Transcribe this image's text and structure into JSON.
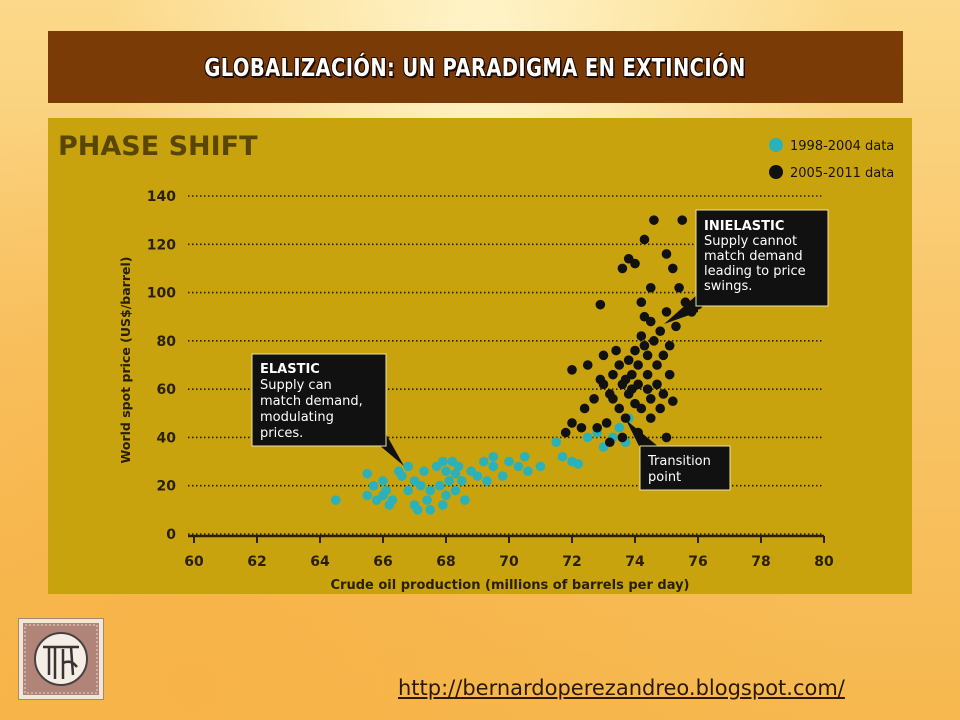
{
  "slide": {
    "title": "GLOBALIZACIÓN:  UN PARADIGMA EN EXTINCIÓN",
    "url": "http://bernardoperezandreo.blogspot.com/"
  },
  "chart_data": {
    "type": "scatter",
    "title": "PHASE SHIFT",
    "xlabel": "Crude oil production (millions of barrels per day)",
    "ylabel": "World spot price (US$/barrel)",
    "xlim": [
      60,
      80
    ],
    "ylim": [
      0,
      140
    ],
    "x_ticks": [
      "60",
      "62",
      "64",
      "66",
      "68",
      "70",
      "72",
      "74",
      "76",
      "78",
      "80"
    ],
    "y_ticks": [
      "0",
      "20",
      "40",
      "60",
      "80",
      "100",
      "120",
      "140"
    ],
    "grid": "horizontal dotted",
    "legend_position": "top-right",
    "colors": {
      "background": "#c8a30e",
      "series1": "#2bb1b7",
      "series2": "#111111",
      "annotation_box": "#111111"
    },
    "series": [
      {
        "name": "1998-2004 data",
        "points": [
          [
            64.5,
            14
          ],
          [
            65.5,
            16
          ],
          [
            65.5,
            25
          ],
          [
            65.7,
            20
          ],
          [
            65.8,
            14
          ],
          [
            66,
            22
          ],
          [
            66,
            16
          ],
          [
            66.1,
            18
          ],
          [
            66.2,
            12
          ],
          [
            66.3,
            14
          ],
          [
            66.5,
            26
          ],
          [
            66.6,
            24
          ],
          [
            66.8,
            18
          ],
          [
            66.8,
            28
          ],
          [
            67,
            12
          ],
          [
            67,
            22
          ],
          [
            67.1,
            10
          ],
          [
            67.2,
            20
          ],
          [
            67.3,
            26
          ],
          [
            67.4,
            14
          ],
          [
            67.5,
            10
          ],
          [
            67.5,
            18
          ],
          [
            67.7,
            28
          ],
          [
            67.8,
            20
          ],
          [
            67.9,
            12
          ],
          [
            67.9,
            30
          ],
          [
            68,
            16
          ],
          [
            68,
            26
          ],
          [
            68.1,
            22
          ],
          [
            68.2,
            30
          ],
          [
            68.3,
            18
          ],
          [
            68.3,
            25
          ],
          [
            68.4,
            28
          ],
          [
            68.5,
            22
          ],
          [
            68.6,
            14
          ],
          [
            68.8,
            26
          ],
          [
            69,
            24
          ],
          [
            69.2,
            30
          ],
          [
            69.3,
            22
          ],
          [
            69.5,
            28
          ],
          [
            69.5,
            32
          ],
          [
            69.8,
            24
          ],
          [
            70,
            30
          ],
          [
            70.3,
            28
          ],
          [
            70.5,
            32
          ],
          [
            70.6,
            26
          ],
          [
            71,
            28
          ],
          [
            71.5,
            38
          ],
          [
            71.7,
            32
          ],
          [
            72,
            30
          ],
          [
            72.2,
            29
          ],
          [
            72.5,
            40
          ],
          [
            72.8,
            42
          ],
          [
            73,
            36
          ],
          [
            73.3,
            40
          ],
          [
            73.5,
            44
          ],
          [
            73.7,
            38
          ],
          [
            73.8,
            48
          ]
        ]
      },
      {
        "name": "2005-2011 data",
        "points": [
          [
            71.8,
            42
          ],
          [
            72,
            46
          ],
          [
            72,
            68
          ],
          [
            72.3,
            44
          ],
          [
            72.4,
            52
          ],
          [
            72.5,
            70
          ],
          [
            72.7,
            56
          ],
          [
            72.9,
            64
          ],
          [
            72.9,
            95
          ],
          [
            73,
            62
          ],
          [
            73,
            74
          ],
          [
            73.1,
            46
          ],
          [
            73.2,
            58
          ],
          [
            73.3,
            66
          ],
          [
            73.3,
            56
          ],
          [
            73.4,
            76
          ],
          [
            73.5,
            52
          ],
          [
            73.5,
            70
          ],
          [
            73.6,
            62
          ],
          [
            73.6,
            110
          ],
          [
            73.7,
            48
          ],
          [
            73.7,
            64
          ],
          [
            73.8,
            58
          ],
          [
            73.8,
            72
          ],
          [
            73.8,
            114
          ],
          [
            73.9,
            60
          ],
          [
            73.9,
            66
          ],
          [
            74,
            54
          ],
          [
            74,
            76
          ],
          [
            74,
            112
          ],
          [
            74.1,
            62
          ],
          [
            74.1,
            70
          ],
          [
            74.2,
            52
          ],
          [
            74.2,
            82
          ],
          [
            74.2,
            96
          ],
          [
            74.3,
            78
          ],
          [
            74.3,
            90
          ],
          [
            74.3,
            122
          ],
          [
            74.4,
            60
          ],
          [
            74.4,
            66
          ],
          [
            74.4,
            74
          ],
          [
            74.5,
            48
          ],
          [
            74.5,
            56
          ],
          [
            74.5,
            88
          ],
          [
            74.5,
            102
          ],
          [
            74.6,
            80
          ],
          [
            74.6,
            130
          ],
          [
            74.7,
            62
          ],
          [
            74.7,
            70
          ],
          [
            74.8,
            52
          ],
          [
            74.8,
            84
          ],
          [
            74.9,
            58
          ],
          [
            74.9,
            74
          ],
          [
            75,
            40
          ],
          [
            75,
            92
          ],
          [
            75,
            116
          ],
          [
            75.1,
            66
          ],
          [
            75.1,
            78
          ],
          [
            75.2,
            55
          ],
          [
            75.2,
            110
          ],
          [
            75.3,
            86
          ],
          [
            75.4,
            102
          ],
          [
            75.5,
            130
          ],
          [
            75.6,
            96
          ],
          [
            75.8,
            92
          ],
          [
            76,
            95
          ],
          [
            73.2,
            38
          ],
          [
            72.8,
            44
          ],
          [
            73.6,
            40
          ],
          [
            74.1,
            42
          ]
        ]
      }
    ],
    "annotations": [
      {
        "lines": [
          "ELASTIC",
          "Supply can",
          "match demand,",
          "modulating",
          "prices."
        ]
      },
      {
        "lines": [
          "INIELASTIC",
          "Supply cannot",
          "match demand",
          "leading to price",
          "swings."
        ]
      },
      {
        "lines": [
          "Transition",
          "point"
        ]
      }
    ]
  }
}
